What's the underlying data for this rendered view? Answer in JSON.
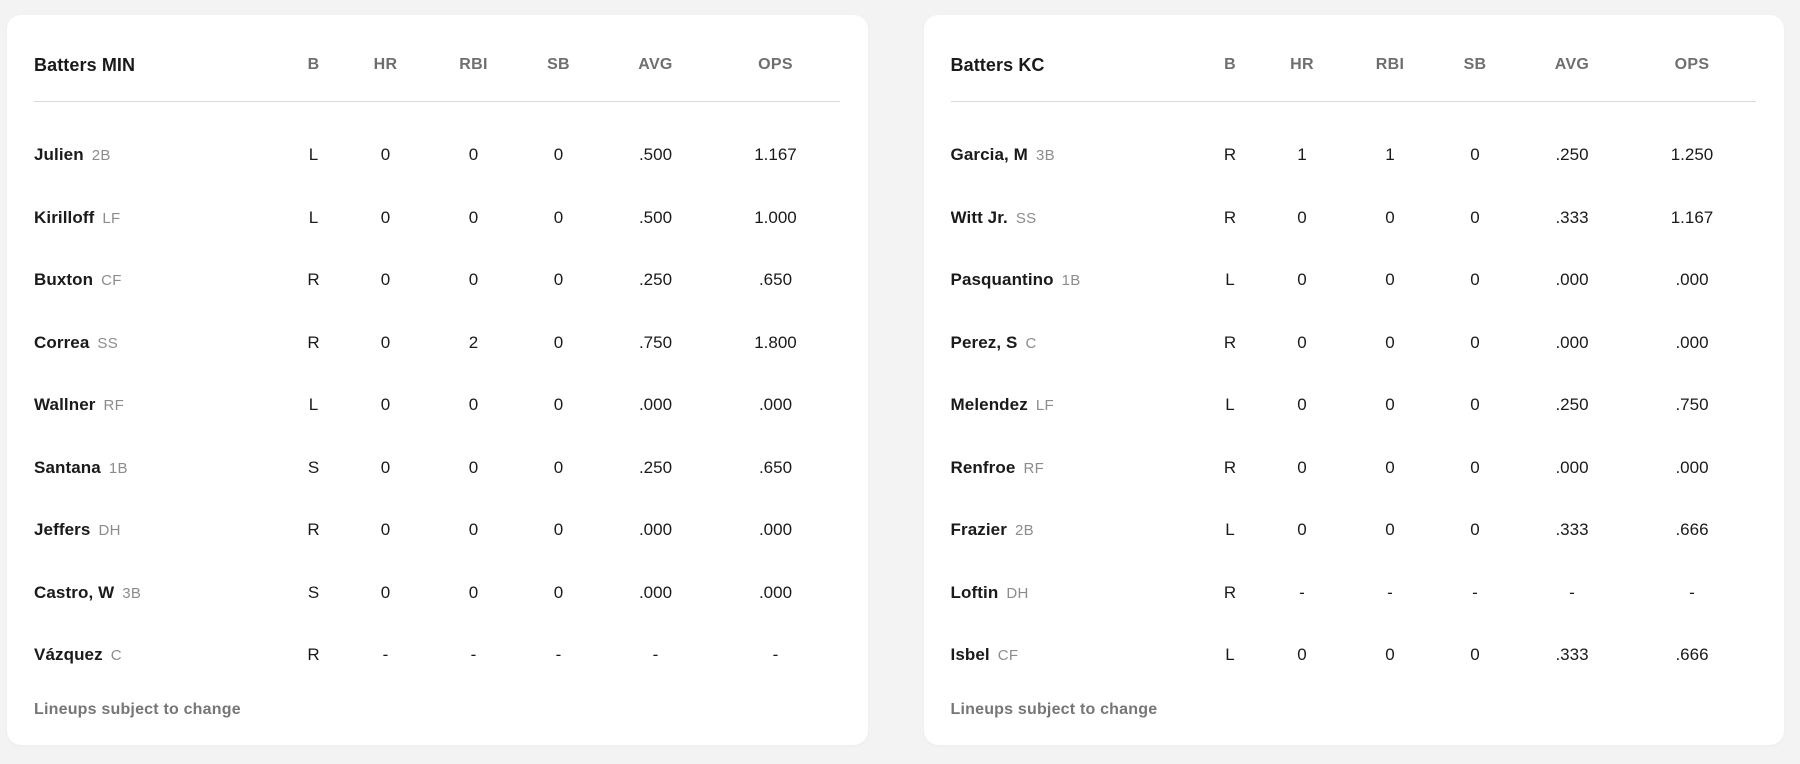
{
  "theme": {
    "page_bg": "#f3f3f3",
    "card_bg": "#ffffff",
    "text_primary": "#1a1a1a",
    "text_position": "#8c8c8c",
    "text_header": "#6f6f6f",
    "divider": "#d9d9d9"
  },
  "columns": [
    "B",
    "HR",
    "RBI",
    "SB",
    "AVG",
    "OPS"
  ],
  "lineups": [
    {
      "title": "Batters MIN",
      "footer": "Lineups subject to change",
      "rows": [
        {
          "name": "Julien",
          "pos": "2B",
          "b": "L",
          "hr": "0",
          "rbi": "0",
          "sb": "0",
          "avg": ".500",
          "ops": "1.167"
        },
        {
          "name": "Kirilloff",
          "pos": "LF",
          "b": "L",
          "hr": "0",
          "rbi": "0",
          "sb": "0",
          "avg": ".500",
          "ops": "1.000"
        },
        {
          "name": "Buxton",
          "pos": "CF",
          "b": "R",
          "hr": "0",
          "rbi": "0",
          "sb": "0",
          "avg": ".250",
          "ops": ".650"
        },
        {
          "name": "Correa",
          "pos": "SS",
          "b": "R",
          "hr": "0",
          "rbi": "2",
          "sb": "0",
          "avg": ".750",
          "ops": "1.800"
        },
        {
          "name": "Wallner",
          "pos": "RF",
          "b": "L",
          "hr": "0",
          "rbi": "0",
          "sb": "0",
          "avg": ".000",
          "ops": ".000"
        },
        {
          "name": "Santana",
          "pos": "1B",
          "b": "S",
          "hr": "0",
          "rbi": "0",
          "sb": "0",
          "avg": ".250",
          "ops": ".650"
        },
        {
          "name": "Jeffers",
          "pos": "DH",
          "b": "R",
          "hr": "0",
          "rbi": "0",
          "sb": "0",
          "avg": ".000",
          "ops": ".000"
        },
        {
          "name": "Castro, W",
          "pos": "3B",
          "b": "S",
          "hr": "0",
          "rbi": "0",
          "sb": "0",
          "avg": ".000",
          "ops": ".000"
        },
        {
          "name": "Vázquez",
          "pos": "C",
          "b": "R",
          "hr": "-",
          "rbi": "-",
          "sb": "-",
          "avg": "-",
          "ops": "-"
        }
      ]
    },
    {
      "title": "Batters KC",
      "footer": "Lineups subject to change",
      "rows": [
        {
          "name": "Garcia, M",
          "pos": "3B",
          "b": "R",
          "hr": "1",
          "rbi": "1",
          "sb": "0",
          "avg": ".250",
          "ops": "1.250"
        },
        {
          "name": "Witt Jr.",
          "pos": "SS",
          "b": "R",
          "hr": "0",
          "rbi": "0",
          "sb": "0",
          "avg": ".333",
          "ops": "1.167"
        },
        {
          "name": "Pasquantino",
          "pos": "1B",
          "b": "L",
          "hr": "0",
          "rbi": "0",
          "sb": "0",
          "avg": ".000",
          "ops": ".000"
        },
        {
          "name": "Perez, S",
          "pos": "C",
          "b": "R",
          "hr": "0",
          "rbi": "0",
          "sb": "0",
          "avg": ".000",
          "ops": ".000"
        },
        {
          "name": "Melendez",
          "pos": "LF",
          "b": "L",
          "hr": "0",
          "rbi": "0",
          "sb": "0",
          "avg": ".250",
          "ops": ".750"
        },
        {
          "name": "Renfroe",
          "pos": "RF",
          "b": "R",
          "hr": "0",
          "rbi": "0",
          "sb": "0",
          "avg": ".000",
          "ops": ".000"
        },
        {
          "name": "Frazier",
          "pos": "2B",
          "b": "L",
          "hr": "0",
          "rbi": "0",
          "sb": "0",
          "avg": ".333",
          "ops": ".666"
        },
        {
          "name": "Loftin",
          "pos": "DH",
          "b": "R",
          "hr": "-",
          "rbi": "-",
          "sb": "-",
          "avg": "-",
          "ops": "-"
        },
        {
          "name": "Isbel",
          "pos": "CF",
          "b": "L",
          "hr": "0",
          "rbi": "0",
          "sb": "0",
          "avg": ".333",
          "ops": ".666"
        }
      ]
    }
  ]
}
